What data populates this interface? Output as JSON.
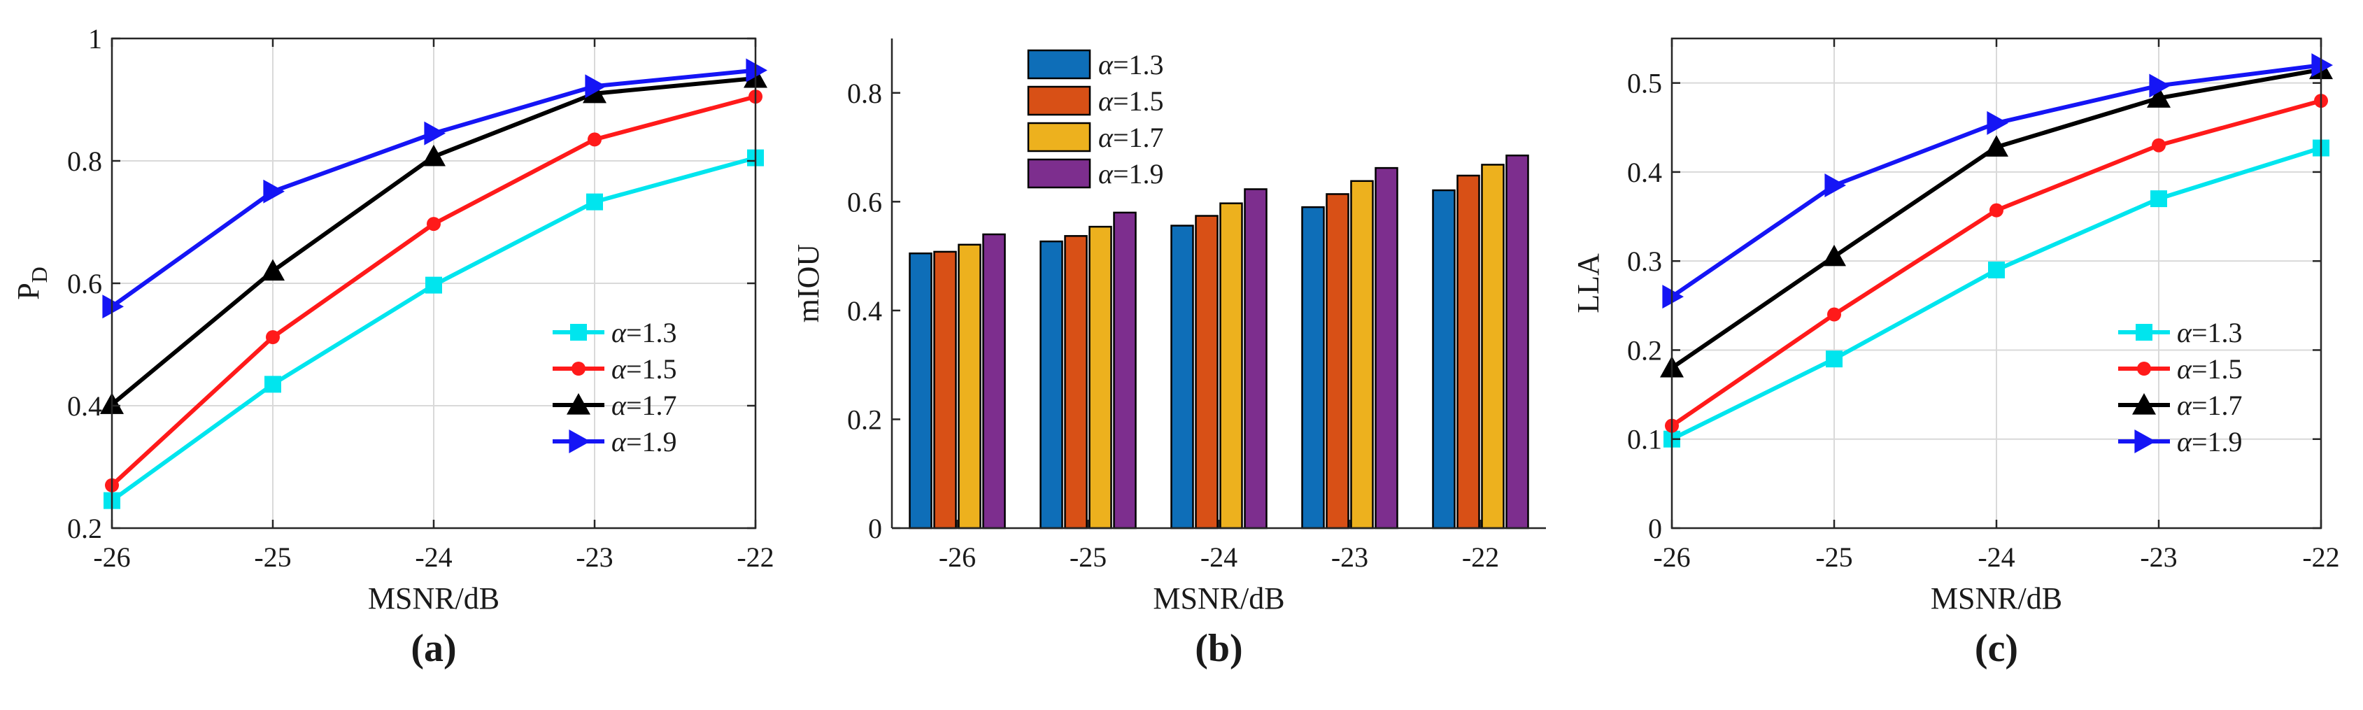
{
  "colors": {
    "cyan": "#00e5ee",
    "red": "#ff1a1a",
    "black": "#000000",
    "blue": "#1515f5",
    "bar_blue": "#0e6eb8",
    "bar_orange": "#d85016",
    "bar_yellow": "#edb11e",
    "bar_purple": "#7d2e8e"
  },
  "chart_data": [
    {
      "type": "line",
      "caption": "(a)",
      "xlabel": "MSNR/dB",
      "ylabel_main": "P",
      "ylabel_sub": "D",
      "x": [
        -26,
        -25,
        -24,
        -23,
        -22
      ],
      "xticks": [
        "-26",
        "-25",
        "-24",
        "-23",
        "-22"
      ],
      "ylim": [
        0.2,
        1.0
      ],
      "yticks": [
        0.2,
        0.4,
        0.6,
        0.8,
        1.0
      ],
      "ytick_labels": [
        "0.2",
        "0.4",
        "0.6",
        "0.8",
        "1"
      ],
      "grid": true,
      "legend_position": "lower-right",
      "series": [
        {
          "symbol": "α",
          "label": "=1.3",
          "color_key": "cyan",
          "marker": "square",
          "values": [
            0.245,
            0.435,
            0.597,
            0.733,
            0.805
          ]
        },
        {
          "symbol": "α",
          "label": "=1.5",
          "color_key": "red",
          "marker": "circle",
          "values": [
            0.27,
            0.512,
            0.697,
            0.835,
            0.905
          ]
        },
        {
          "symbol": "α",
          "label": "=1.7",
          "color_key": "black",
          "marker": "triangle-up",
          "values": [
            0.402,
            0.62,
            0.807,
            0.91,
            0.935
          ]
        },
        {
          "symbol": "α",
          "label": "=1.9",
          "color_key": "blue",
          "marker": "triangle-right",
          "values": [
            0.562,
            0.75,
            0.845,
            0.922,
            0.948
          ]
        }
      ]
    },
    {
      "type": "bar",
      "caption": "(b)",
      "xlabel": "MSNR/dB",
      "ylabel": "mIOU",
      "categories": [
        "-26",
        "-25",
        "-24",
        "-23",
        "-22"
      ],
      "ylim": [
        0,
        0.9
      ],
      "yticks": [
        0,
        0.2,
        0.4,
        0.6,
        0.8
      ],
      "ytick_labels": [
        "0",
        "0.2",
        "0.4",
        "0.6",
        "0.8"
      ],
      "grid": false,
      "legend_position": "top-center",
      "series": [
        {
          "symbol": "α",
          "label": "=1.3",
          "color_key": "bar_blue",
          "values": [
            0.505,
            0.527,
            0.556,
            0.59,
            0.621
          ]
        },
        {
          "symbol": "α",
          "label": "=1.5",
          "color_key": "bar_orange",
          "values": [
            0.508,
            0.537,
            0.574,
            0.614,
            0.648
          ]
        },
        {
          "symbol": "α",
          "label": "=1.7",
          "color_key": "bar_yellow",
          "values": [
            0.521,
            0.554,
            0.597,
            0.638,
            0.668
          ]
        },
        {
          "symbol": "α",
          "label": "=1.9",
          "color_key": "bar_purple",
          "values": [
            0.54,
            0.58,
            0.623,
            0.662,
            0.685
          ]
        }
      ]
    },
    {
      "type": "line",
      "caption": "(c)",
      "xlabel": "MSNR/dB",
      "ylabel": "LLA",
      "x": [
        -26,
        -25,
        -24,
        -23,
        -22
      ],
      "xticks": [
        "-26",
        "-25",
        "-24",
        "-23",
        "-22"
      ],
      "ylim": [
        0,
        0.55
      ],
      "yticks": [
        0,
        0.1,
        0.2,
        0.3,
        0.4,
        0.5
      ],
      "ytick_labels": [
        "0",
        "0.1",
        "0.2",
        "0.3",
        "0.4",
        "0.5"
      ],
      "grid": true,
      "legend_position": "lower-right",
      "series": [
        {
          "symbol": "α",
          "label": "=1.3",
          "color_key": "cyan",
          "marker": "square",
          "values": [
            0.1,
            0.19,
            0.29,
            0.37,
            0.427
          ]
        },
        {
          "symbol": "α",
          "label": "=1.5",
          "color_key": "red",
          "marker": "circle",
          "values": [
            0.115,
            0.24,
            0.357,
            0.43,
            0.48
          ]
        },
        {
          "symbol": "α",
          "label": "=1.7",
          "color_key": "black",
          "marker": "triangle-up",
          "values": [
            0.18,
            0.305,
            0.428,
            0.483,
            0.515
          ]
        },
        {
          "symbol": "α",
          "label": "=1.9",
          "color_key": "blue",
          "marker": "triangle-right",
          "values": [
            0.26,
            0.385,
            0.455,
            0.497,
            0.52
          ]
        }
      ]
    }
  ]
}
